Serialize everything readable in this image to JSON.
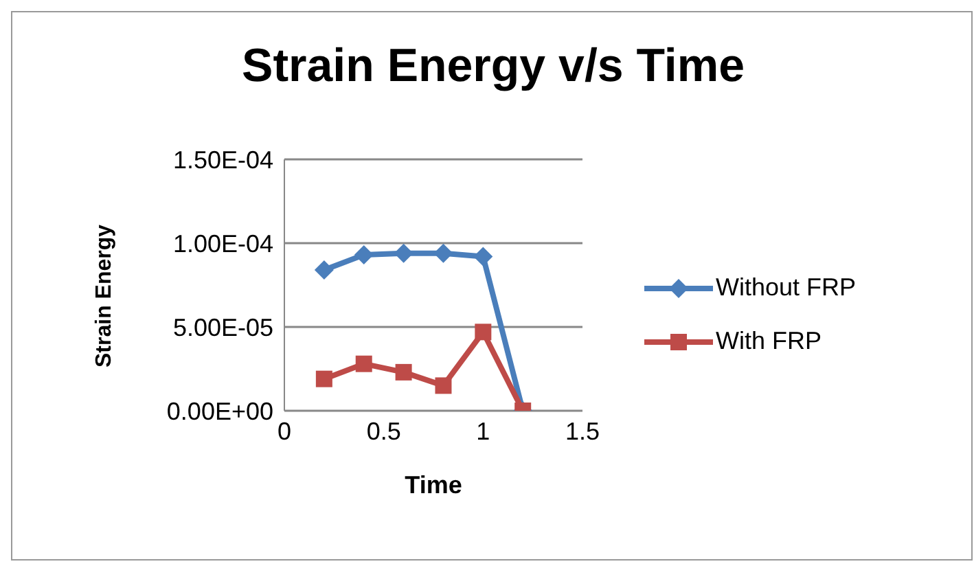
{
  "chart_data": {
    "type": "line",
    "title": "Strain Energy v/s Time",
    "xlabel": "Time",
    "ylabel": "Strain Energy",
    "x": [
      0.2,
      0.4,
      0.6,
      0.8,
      1.0,
      1.2
    ],
    "series": [
      {
        "name": "Without FRP",
        "color": "#4a7ebb",
        "marker": "diamond",
        "values": [
          8.4e-05,
          9.3e-05,
          9.4e-05,
          9.4e-05,
          9.2e-05,
          0
        ]
      },
      {
        "name": "With FRP",
        "color": "#be4b48",
        "marker": "square",
        "values": [
          1.9e-05,
          2.8e-05,
          2.3e-05,
          1.5e-05,
          4.7e-05,
          0
        ]
      }
    ],
    "xlim": [
      0,
      1.5
    ],
    "xticks": [
      0,
      0.5,
      1,
      1.5
    ],
    "ylim": [
      0,
      0.00015
    ],
    "yticks": [
      {
        "value": 0,
        "label": "0.00E+00"
      },
      {
        "value": 5e-05,
        "label": "5.00E-05"
      },
      {
        "value": 0.0001,
        "label": "1.00E-04"
      },
      {
        "value": 0.00015,
        "label": "1.50E-04"
      }
    ],
    "grid": "y",
    "legend": "right",
    "line_style": "solid"
  }
}
